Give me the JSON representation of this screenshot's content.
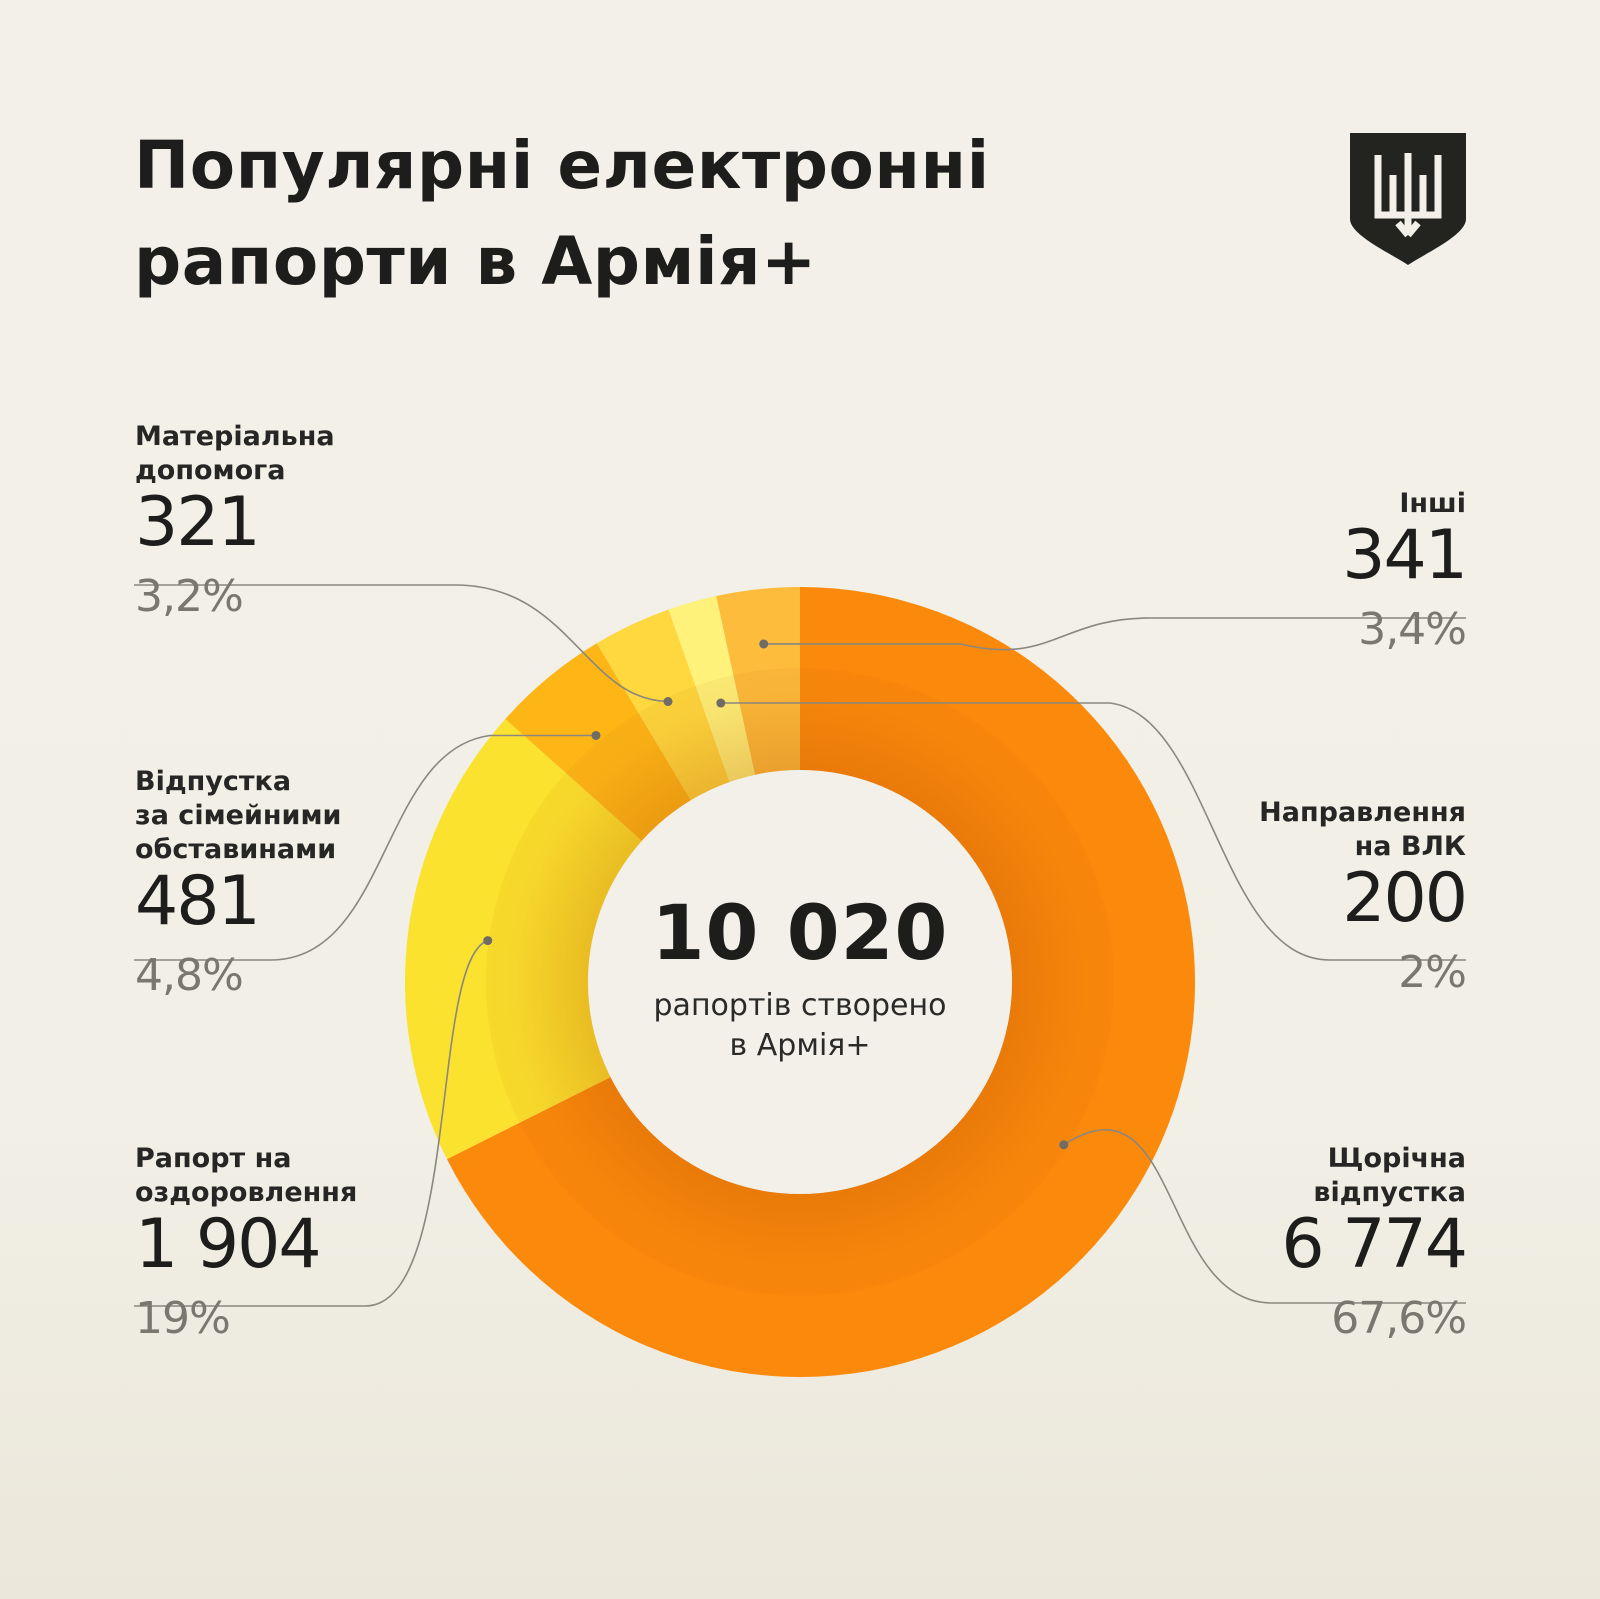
{
  "title": {
    "line1": "Популярні електронні",
    "line2": "рапорти в Армія+"
  },
  "emblem_icon": "trident-shield-icon",
  "center": {
    "total": "10 020",
    "caption_line1": "рапортів створено",
    "caption_line2": "в Армія+"
  },
  "chart_data": {
    "type": "pie",
    "total": 10020,
    "slices": [
      {
        "name": "Щорічна\nвідпустка",
        "value": 6774,
        "value_label": "6 774",
        "percent_label": "67,6%",
        "color": "#fb8a0c"
      },
      {
        "name": "Рапорт на\nоздоровлення",
        "value": 1904,
        "value_label": "1 904",
        "percent_label": "19%",
        "color": "#fbe22e"
      },
      {
        "name": "Відпустка\nза сімейними\nобставинами",
        "value": 481,
        "value_label": "481",
        "percent_label": "4,8%",
        "color": "#fdb616"
      },
      {
        "name": "Матеріальна\nдопомога",
        "value": 321,
        "value_label": "321",
        "percent_label": "3,2%",
        "color": "#fed83e"
      },
      {
        "name": "Направлення\nна ВЛК",
        "value": 200,
        "value_label": "200",
        "percent_label": "2%",
        "color": "#fef27a"
      },
      {
        "name": "Інші",
        "value": 341,
        "value_label": "341",
        "percent_label": "3,4%",
        "color": "#fdbc3c"
      }
    ]
  },
  "colors": {
    "background": "#f2f0e8",
    "text": "#1d1d1b",
    "percent_text": "#7a7770",
    "leader_line": "#8a877f"
  }
}
